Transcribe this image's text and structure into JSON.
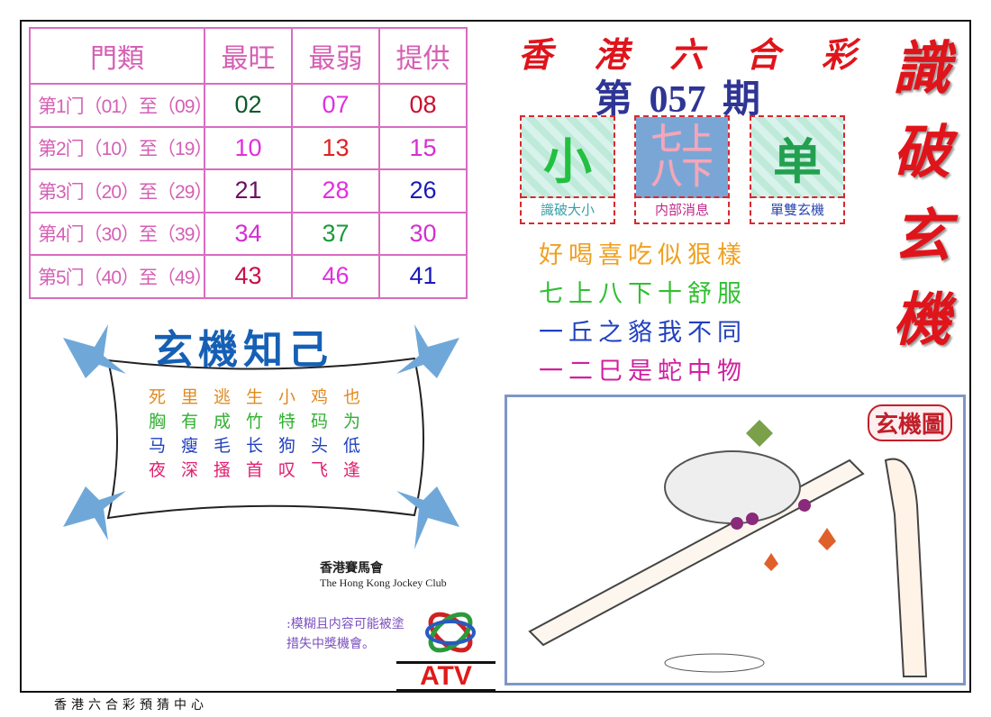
{
  "table": {
    "headers": [
      "門類",
      "最旺",
      "最弱",
      "提供"
    ],
    "rows": [
      {
        "label": "第1门（01）至（09）",
        "values": [
          "02",
          "07",
          "08"
        ],
        "colors": [
          "#0b5a2a",
          "#e22ee0",
          "#c8102e"
        ]
      },
      {
        "label": "第2门（10）至（19）",
        "values": [
          "10",
          "13",
          "15"
        ],
        "colors": [
          "#e22ee0",
          "#e02020",
          "#d42fd0"
        ]
      },
      {
        "label": "第3门（20）至（29）",
        "values": [
          "21",
          "28",
          "26"
        ],
        "colors": [
          "#6a1060",
          "#e22ee0",
          "#1a1ab8"
        ]
      },
      {
        "label": "第4门（30）至（39）",
        "values": [
          "34",
          "37",
          "30"
        ],
        "colors": [
          "#d42fd0",
          "#1a9a3a",
          "#d42fd0"
        ]
      },
      {
        "label": "第5门（40）至（49）",
        "values": [
          "43",
          "46",
          "41"
        ],
        "colors": [
          "#c8104a",
          "#e22ee0",
          "#1a1ab8"
        ]
      }
    ]
  },
  "title_chars": [
    "香",
    "港",
    "六",
    "合",
    "彩"
  ],
  "issue": "第 057 期",
  "boxes": [
    {
      "glyph": "小",
      "caption": "識破大小",
      "caption_color": "#3a9fa8"
    },
    {
      "glyph": "七上\n八下",
      "caption": "内部消息",
      "caption_color": "#c02a8a"
    },
    {
      "glyph": "单",
      "caption": "單雙玄機",
      "caption_color": "#2a46b0"
    }
  ],
  "slogans": [
    {
      "text": "好喝喜吃似狠樣",
      "color": "#f0a020"
    },
    {
      "text": "七上八下十舒服",
      "color": "#30c030"
    },
    {
      "text": "一丘之貉我不同",
      "color": "#2040c0"
    },
    {
      "text": "一二巳是蛇中物",
      "color": "#d020a0"
    }
  ],
  "vertical_title": [
    "識",
    "破",
    "玄",
    "機"
  ],
  "picture_label": "玄機圖",
  "banner": "玄機知己",
  "poem": [
    {
      "text": "死里逃生小鸡也",
      "color": "#e08a20"
    },
    {
      "text": "胸有成竹特码为",
      "color": "#30b030"
    },
    {
      "text": "马瘦毛长狗头低",
      "color": "#2040c0"
    },
    {
      "text": "夜深搔首叹飞逢",
      "color": "#e02070"
    }
  ],
  "hkjc": {
    "zh": "香港賽馬會",
    "en": "The Hong Kong Jockey Club"
  },
  "disclaimer": [
    ":模糊且内容可能被塗",
    "措失中獎機會。"
  ],
  "atv": "ATV",
  "footer": "香港六合彩預猜中心"
}
